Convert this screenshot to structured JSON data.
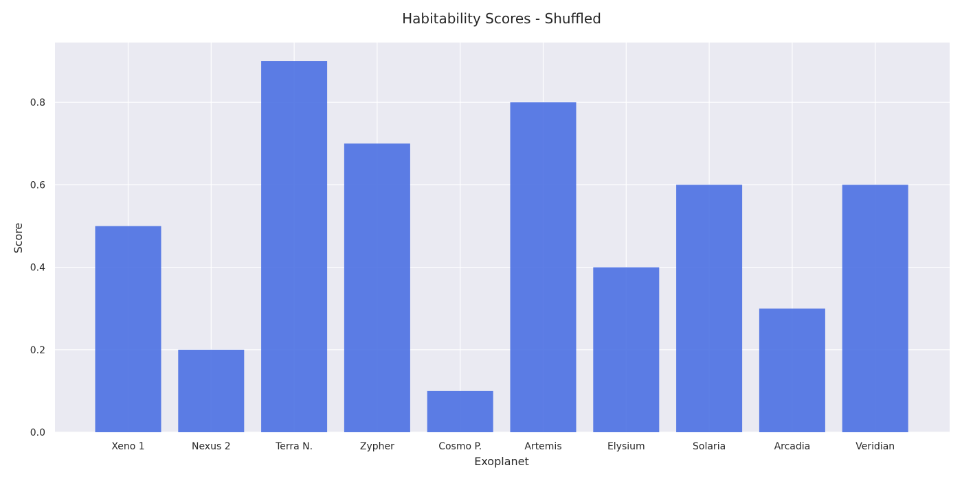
{
  "chart_data": {
    "type": "bar",
    "title": "Habitability Scores - Shuffled",
    "xlabel": "Exoplanet",
    "ylabel": "Score",
    "categories": [
      "Xeno 1",
      "Nexus 2",
      "Terra N.",
      "Zypher",
      "Cosmo P.",
      "Artemis",
      "Elysium",
      "Solaria",
      "Arcadia",
      "Veridian"
    ],
    "values": [
      0.5,
      0.2,
      0.9,
      0.7,
      0.1,
      0.8,
      0.4,
      0.6,
      0.3,
      0.6
    ],
    "ylim": [
      0,
      0.945
    ],
    "yticks": [
      0.0,
      0.2,
      0.4,
      0.6,
      0.8
    ],
    "ytick_labels": [
      "0.0",
      "0.2",
      "0.4",
      "0.6",
      "0.8"
    ],
    "grid": true,
    "colors": {
      "bar": "#4b70e2",
      "plot_background": "#eaeaf2",
      "grid": "#ffffff",
      "text": "#262626"
    }
  }
}
